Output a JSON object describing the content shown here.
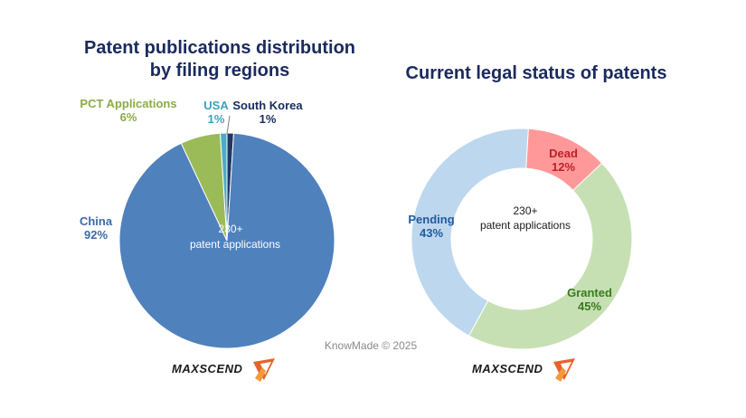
{
  "chart_data": [
    {
      "type": "pie",
      "title_lines": [
        "Patent publications distribution",
        "by filing regions"
      ],
      "center_text": [
        "230+",
        "patent applications"
      ],
      "slices": [
        {
          "label": "China",
          "value": 92,
          "display": "92%",
          "color": "#4f81bd",
          "label_color": "#3a6aa6"
        },
        {
          "label": "PCT Applications",
          "value": 6,
          "display": "6%",
          "color": "#9bbb59",
          "label_color": "#8aac45"
        },
        {
          "label": "USA",
          "value": 1,
          "display": "1%",
          "color": "#4bacc6",
          "label_color": "#3aa3c0"
        },
        {
          "label": "South Korea",
          "value": 1,
          "display": "1%",
          "color": "#1f3864",
          "label_color": "#1a2a5e"
        }
      ]
    },
    {
      "type": "pie",
      "title_lines": [
        "Current legal status of patents"
      ],
      "center_text": [
        "230+",
        "patent applications"
      ],
      "slices": [
        {
          "label": "Dead",
          "value": 12,
          "display": "12%",
          "color": "#ff9999",
          "label_color": "#c0202a"
        },
        {
          "label": "Granted",
          "value": 45,
          "display": "45%",
          "color": "#c6e0b4",
          "label_color": "#3a7a1e"
        },
        {
          "label": "Pending",
          "value": 43,
          "display": "43%",
          "color": "#bdd7ee",
          "label_color": "#1f5b9e"
        }
      ]
    }
  ],
  "credit": "KnowMade © 2025",
  "logo": {
    "text": "MAXSCEND",
    "colors": [
      "#e8622a",
      "#f29a3c"
    ]
  }
}
